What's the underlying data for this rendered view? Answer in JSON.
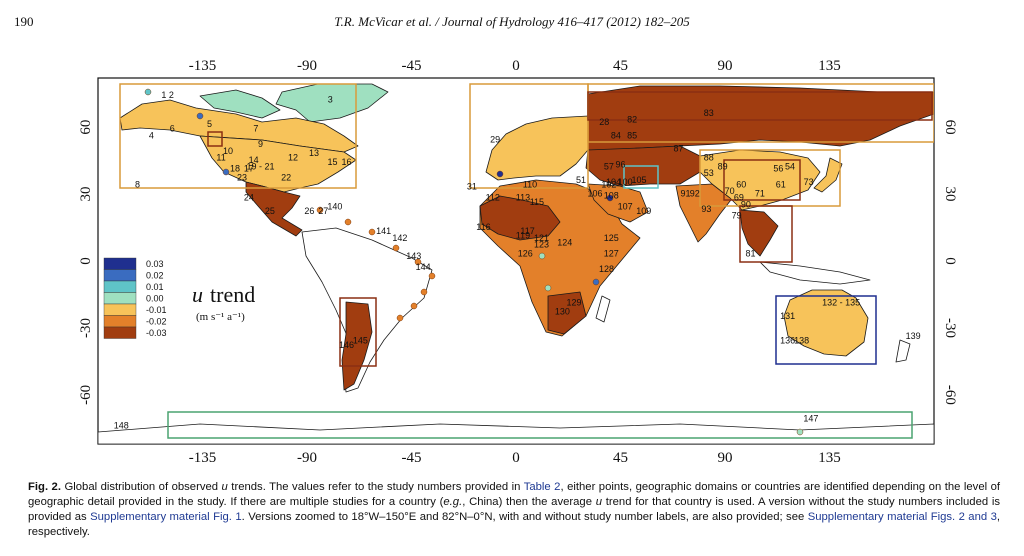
{
  "header": {
    "page_number": "190",
    "running_head": "T.R. McVicar et al. / Journal of Hydrology 416–417 (2012) 182–205"
  },
  "map": {
    "lon_ticks": [
      "-135",
      "-90",
      "-45",
      "0",
      "45",
      "90",
      "135"
    ],
    "lat_ticks": [
      "60",
      "30",
      "0",
      "-30",
      "-60"
    ],
    "legend": {
      "title_symbol": "u",
      "title_word": "trend",
      "units": "(m s⁻¹ a⁻¹)",
      "classes": [
        {
          "value": "0.03",
          "color": "#1f2f8f"
        },
        {
          "value": "0.02",
          "color": "#3a6cc0"
        },
        {
          "value": "0.01",
          "color": "#5fc4c8"
        },
        {
          "value": "0.00",
          "color": "#9fe0c0"
        },
        {
          "value": "-0.01",
          "color": "#f7c35a"
        },
        {
          "value": "-0.02",
          "color": "#e3802a"
        },
        {
          "value": "-0.03",
          "color": "#a13d10"
        }
      ]
    },
    "colors": {
      "land_neutral": "#ffffff",
      "coast": "#1a1a1a",
      "box_orange": "#d89a3a",
      "box_brown": "#8a2f12",
      "box_navy": "#1f2f8f",
      "box_green": "#4aa370"
    },
    "study_labels": [
      {
        "text": "1 2",
        "lon": -150,
        "lat": 73
      },
      {
        "text": "3",
        "lon": -80,
        "lat": 71
      },
      {
        "text": "5",
        "lon": -132,
        "lat": 60
      },
      {
        "text": "6",
        "lon": -148,
        "lat": 58
      },
      {
        "text": "4",
        "lon": -157,
        "lat": 55
      },
      {
        "text": "7",
        "lon": -112,
        "lat": 58
      },
      {
        "text": "8",
        "lon": -163,
        "lat": 33
      },
      {
        "text": "9",
        "lon": -110,
        "lat": 51
      },
      {
        "text": "10",
        "lon": -124,
        "lat": 48
      },
      {
        "text": "11",
        "lon": -127,
        "lat": 45
      },
      {
        "text": "12",
        "lon": -96,
        "lat": 45
      },
      {
        "text": "13",
        "lon": -87,
        "lat": 47
      },
      {
        "text": "14",
        "lon": -113,
        "lat": 44
      },
      {
        "text": "15",
        "lon": -79,
        "lat": 43
      },
      {
        "text": "16",
        "lon": -73,
        "lat": 43
      },
      {
        "text": "17",
        "lon": -115,
        "lat": 40
      },
      {
        "text": "18",
        "lon": -121,
        "lat": 40
      },
      {
        "text": "19 - 21",
        "lon": -110,
        "lat": 41
      },
      {
        "text": "22",
        "lon": -99,
        "lat": 36
      },
      {
        "text": "23",
        "lon": -118,
        "lat": 36
      },
      {
        "text": "24",
        "lon": -115,
        "lat": 27
      },
      {
        "text": "25",
        "lon": -106,
        "lat": 21
      },
      {
        "text": "26",
        "lon": -89,
        "lat": 21
      },
      {
        "text": "27",
        "lon": -83,
        "lat": 21
      },
      {
        "text": "28",
        "lon": 38,
        "lat": 61
      },
      {
        "text": "29",
        "lon": -9,
        "lat": 53
      },
      {
        "text": "31",
        "lon": -19,
        "lat": 32
      },
      {
        "text": "51",
        "lon": 28,
        "lat": 35
      },
      {
        "text": "57",
        "lon": 40,
        "lat": 41
      },
      {
        "text": "82",
        "lon": 50,
        "lat": 62
      },
      {
        "text": "83",
        "lon": 83,
        "lat": 65
      },
      {
        "text": "84",
        "lon": 43,
        "lat": 55
      },
      {
        "text": "85",
        "lon": 50,
        "lat": 55
      },
      {
        "text": "87",
        "lon": 70,
        "lat": 49
      },
      {
        "text": "88",
        "lon": 83,
        "lat": 45
      },
      {
        "text": "89",
        "lon": 89,
        "lat": 41
      },
      {
        "text": "96",
        "lon": 45,
        "lat": 42
      },
      {
        "text": "100",
        "lon": 47,
        "lat": 34
      },
      {
        "text": "102",
        "lon": 40,
        "lat": 33
      },
      {
        "text": "104",
        "lon": 42,
        "lat": 34
      },
      {
        "text": "105",
        "lon": 53,
        "lat": 35
      },
      {
        "text": "106",
        "lon": 34,
        "lat": 29
      },
      {
        "text": "107",
        "lon": 47,
        "lat": 23
      },
      {
        "text": "108",
        "lon": 41,
        "lat": 28
      },
      {
        "text": "109",
        "lon": 55,
        "lat": 21
      },
      {
        "text": "110",
        "lon": 6,
        "lat": 33
      },
      {
        "text": "112",
        "lon": -10,
        "lat": 27
      },
      {
        "text": "113",
        "lon": 3,
        "lat": 27
      },
      {
        "text": "115",
        "lon": 9,
        "lat": 25
      },
      {
        "text": "116",
        "lon": -14,
        "lat": 14
      },
      {
        "text": "117",
        "lon": 5,
        "lat": 12
      },
      {
        "text": "119",
        "lon": 3,
        "lat": 10
      },
      {
        "text": "121",
        "lon": 11,
        "lat": 9
      },
      {
        "text": "123",
        "lon": 11,
        "lat": 6
      },
      {
        "text": "124",
        "lon": 21,
        "lat": 7
      },
      {
        "text": "125",
        "lon": 41,
        "lat": 9
      },
      {
        "text": "126",
        "lon": 4,
        "lat": 2
      },
      {
        "text": "127",
        "lon": 41,
        "lat": 2
      },
      {
        "text": "128",
        "lon": 39,
        "lat": -5
      },
      {
        "text": "129",
        "lon": 25,
        "lat": -20
      },
      {
        "text": "130",
        "lon": 20,
        "lat": -24
      },
      {
        "text": "131",
        "lon": 117,
        "lat": -26
      },
      {
        "text": "132 - 135",
        "lon": 140,
        "lat": -20
      },
      {
        "text": "136",
        "lon": 117,
        "lat": -37
      },
      {
        "text": "138",
        "lon": 123,
        "lat": -37
      },
      {
        "text": "139",
        "lon": 171,
        "lat": -35
      },
      {
        "text": "140",
        "lon": -78,
        "lat": 23
      },
      {
        "text": "141",
        "lon": -57,
        "lat": 12
      },
      {
        "text": "142",
        "lon": -50,
        "lat": 9
      },
      {
        "text": "143",
        "lon": -44,
        "lat": 1
      },
      {
        "text": "144",
        "lon": -40,
        "lat": -4
      },
      {
        "text": "145",
        "lon": -67,
        "lat": -37
      },
      {
        "text": "146",
        "lon": -73,
        "lat": -39
      },
      {
        "text": "147",
        "lon": 127,
        "lat": -72
      },
      {
        "text": "148",
        "lon": -170,
        "lat": -75
      },
      {
        "text": "73",
        "lon": 126,
        "lat": 34
      },
      {
        "text": "81",
        "lon": 101,
        "lat": 2
      },
      {
        "text": "79",
        "lon": 95,
        "lat": 19
      },
      {
        "text": "91",
        "lon": 73,
        "lat": 29
      },
      {
        "text": "92",
        "lon": 77,
        "lat": 29
      },
      {
        "text": "93",
        "lon": 82,
        "lat": 22
      },
      {
        "text": "53",
        "lon": 83,
        "lat": 38
      },
      {
        "text": "56",
        "lon": 113,
        "lat": 40
      },
      {
        "text": "54",
        "lon": 118,
        "lat": 41
      },
      {
        "text": "60",
        "lon": 97,
        "lat": 33
      },
      {
        "text": "61",
        "lon": 114,
        "lat": 33
      },
      {
        "text": "70",
        "lon": 92,
        "lat": 30
      },
      {
        "text": "71",
        "lon": 105,
        "lat": 29
      },
      {
        "text": "90",
        "lon": 99,
        "lat": 24
      },
      {
        "text": "69",
        "lon": 96,
        "lat": 27
      }
    ]
  },
  "caption": {
    "lead": "Fig. 2.",
    "t1": " Global distribution of observed ",
    "u1": "u",
    "t2": " trends. The values refer to the study numbers provided in ",
    "link_table": "Table 2",
    "t3": ", either points, geographic domains or countries are identified depending on the level of geographic detail provided in the study. If there are multiple studies for a country (",
    "eg": "e.g.",
    "t4": ", China) then the average ",
    "u2": "u",
    "t5": " trend for that country is used. A version without the study numbers included is provided as ",
    "link_fig1": "Supplementary material Fig. 1",
    "t6": ". Versions zoomed to 18°W–150°E and 82°N–0°N, with and without study number labels, are also provided; see ",
    "link_fig23": "Supplementary material Figs. 2 and 3",
    "t7": ", respectively."
  }
}
